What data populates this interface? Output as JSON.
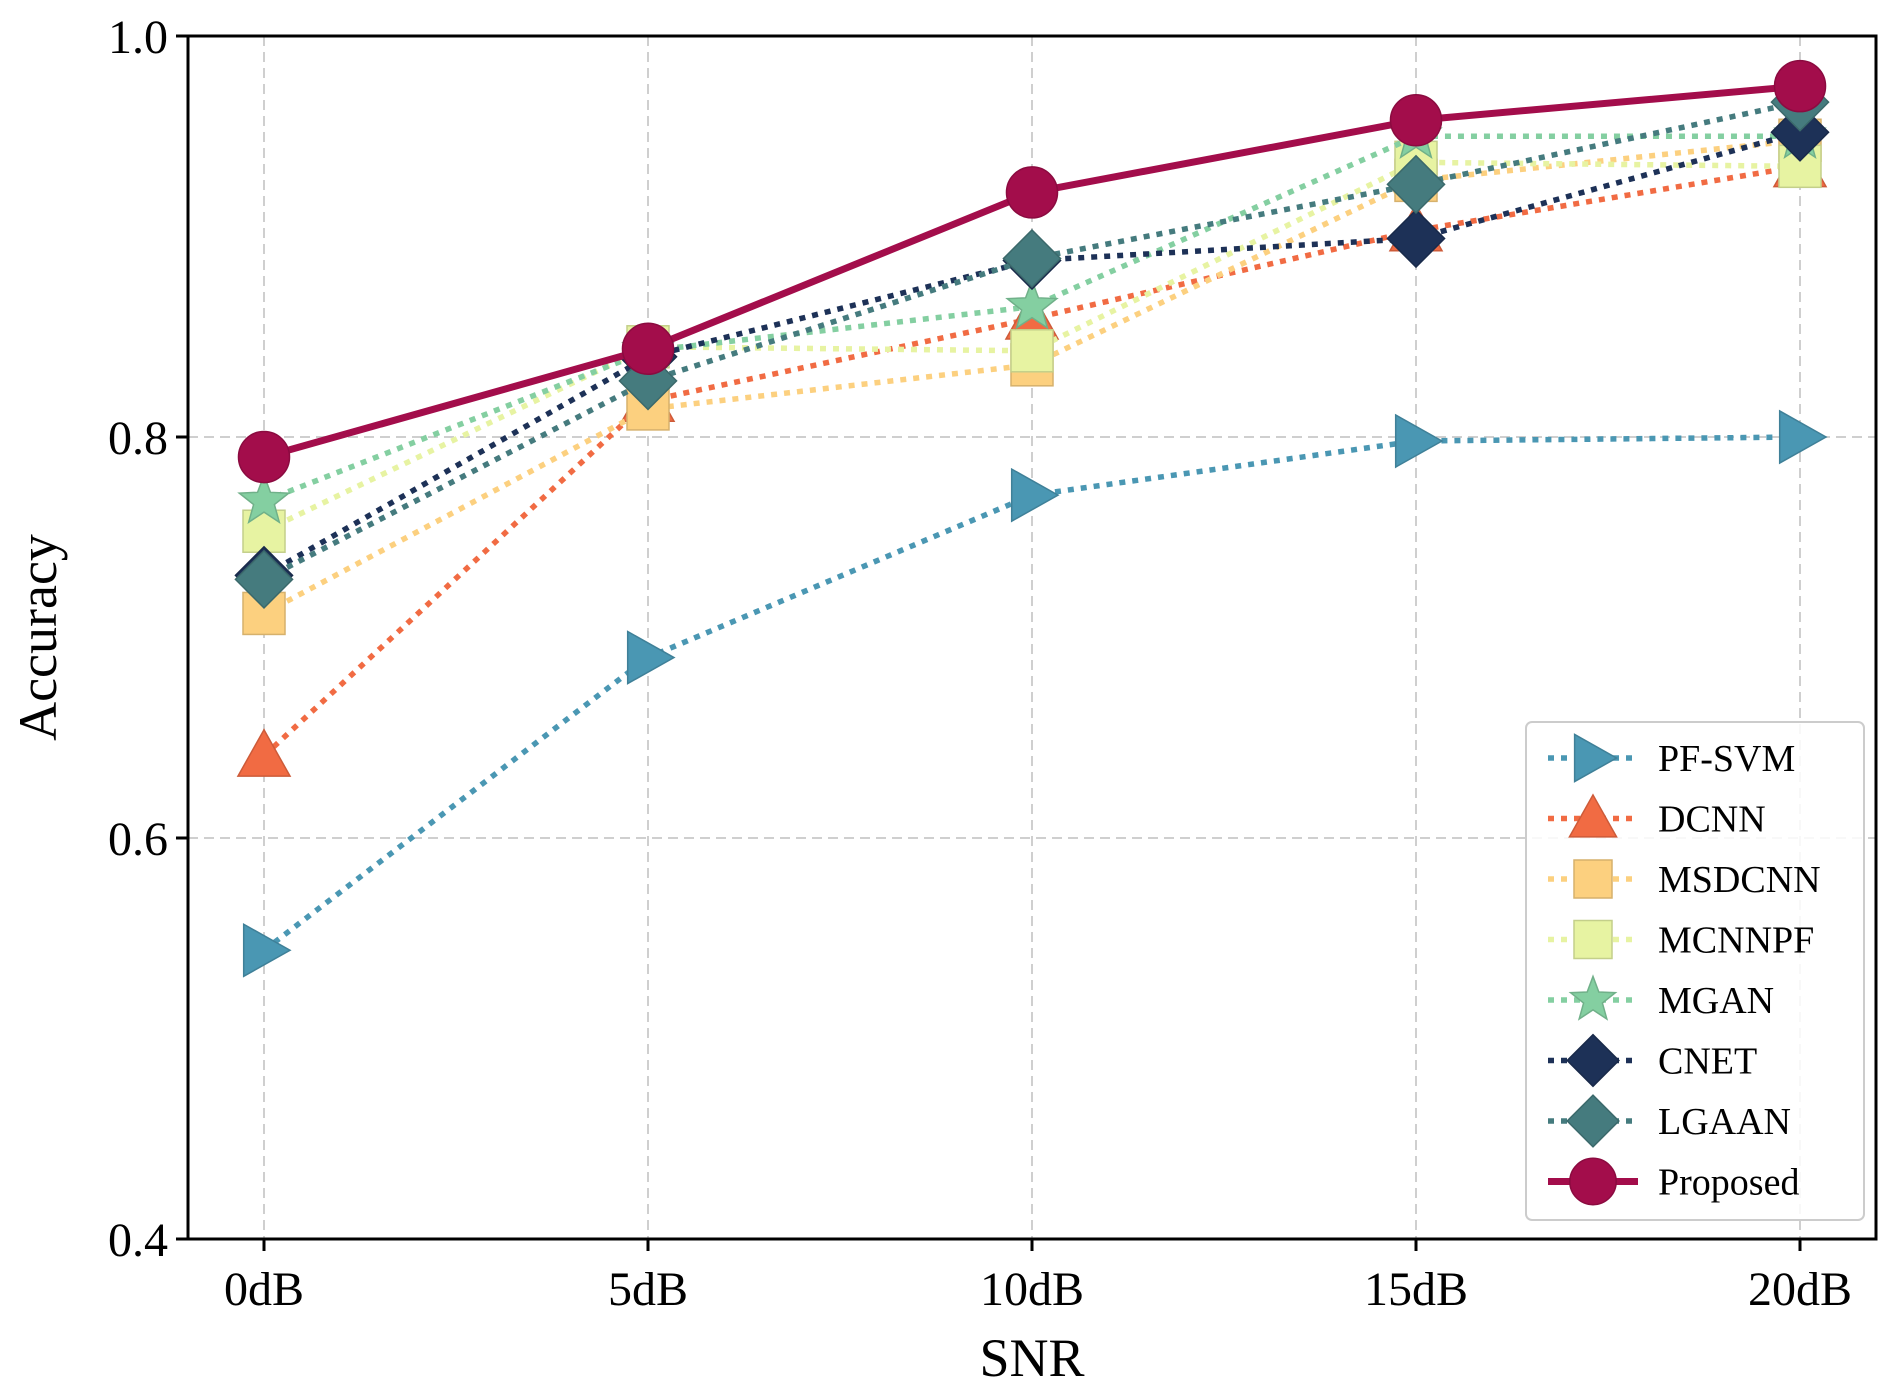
{
  "chart_data": {
    "type": "line",
    "title": "",
    "xlabel": "SNR",
    "ylabel": "Accuracy",
    "categories": [
      "0dB",
      "5dB",
      "10dB",
      "15dB",
      "20dB"
    ],
    "ylim": [
      0.4,
      1.0
    ],
    "yticks": [
      0.4,
      0.6,
      0.8,
      1.0
    ],
    "ytick_labels": [
      "0.4",
      "0.6",
      "0.8",
      "1.0"
    ],
    "grid": true,
    "legend_position": "bottom-right",
    "series": [
      {
        "name": "PF-SVM",
        "color": "#4a97b3",
        "marker": "triangle-right",
        "style": "dotted",
        "values": [
          0.544,
          0.69,
          0.771,
          0.798,
          0.8
        ]
      },
      {
        "name": "DCNN",
        "color": "#f16b43",
        "marker": "triangle-up",
        "style": "dotted",
        "values": [
          0.641,
          0.818,
          0.859,
          0.903,
          0.935
        ]
      },
      {
        "name": "MSDCNN",
        "color": "#fcd07f",
        "marker": "square",
        "style": "dotted",
        "values": [
          0.712,
          0.814,
          0.836,
          0.928,
          0.948
        ]
      },
      {
        "name": "MCNNPF",
        "color": "#e7f3a2",
        "marker": "square",
        "style": "dotted",
        "values": [
          0.753,
          0.845,
          0.843,
          0.937,
          0.935
        ]
      },
      {
        "name": "MGAN",
        "color": "#84cfa1",
        "marker": "star",
        "style": "dotted",
        "values": [
          0.768,
          0.843,
          0.865,
          0.95,
          0.95
        ]
      },
      {
        "name": "CNET",
        "color": "#1d3157",
        "marker": "diamond",
        "style": "dotted",
        "values": [
          0.731,
          0.84,
          0.888,
          0.899,
          0.952
        ]
      },
      {
        "name": "LGAAN",
        "color": "#457b7e",
        "marker": "diamond",
        "style": "dotted",
        "values": [
          0.729,
          0.828,
          0.889,
          0.926,
          0.967
        ]
      },
      {
        "name": "Proposed",
        "color": "#a30d4b",
        "marker": "circle",
        "style": "solid",
        "values": [
          0.79,
          0.844,
          0.922,
          0.958,
          0.975
        ]
      }
    ]
  }
}
